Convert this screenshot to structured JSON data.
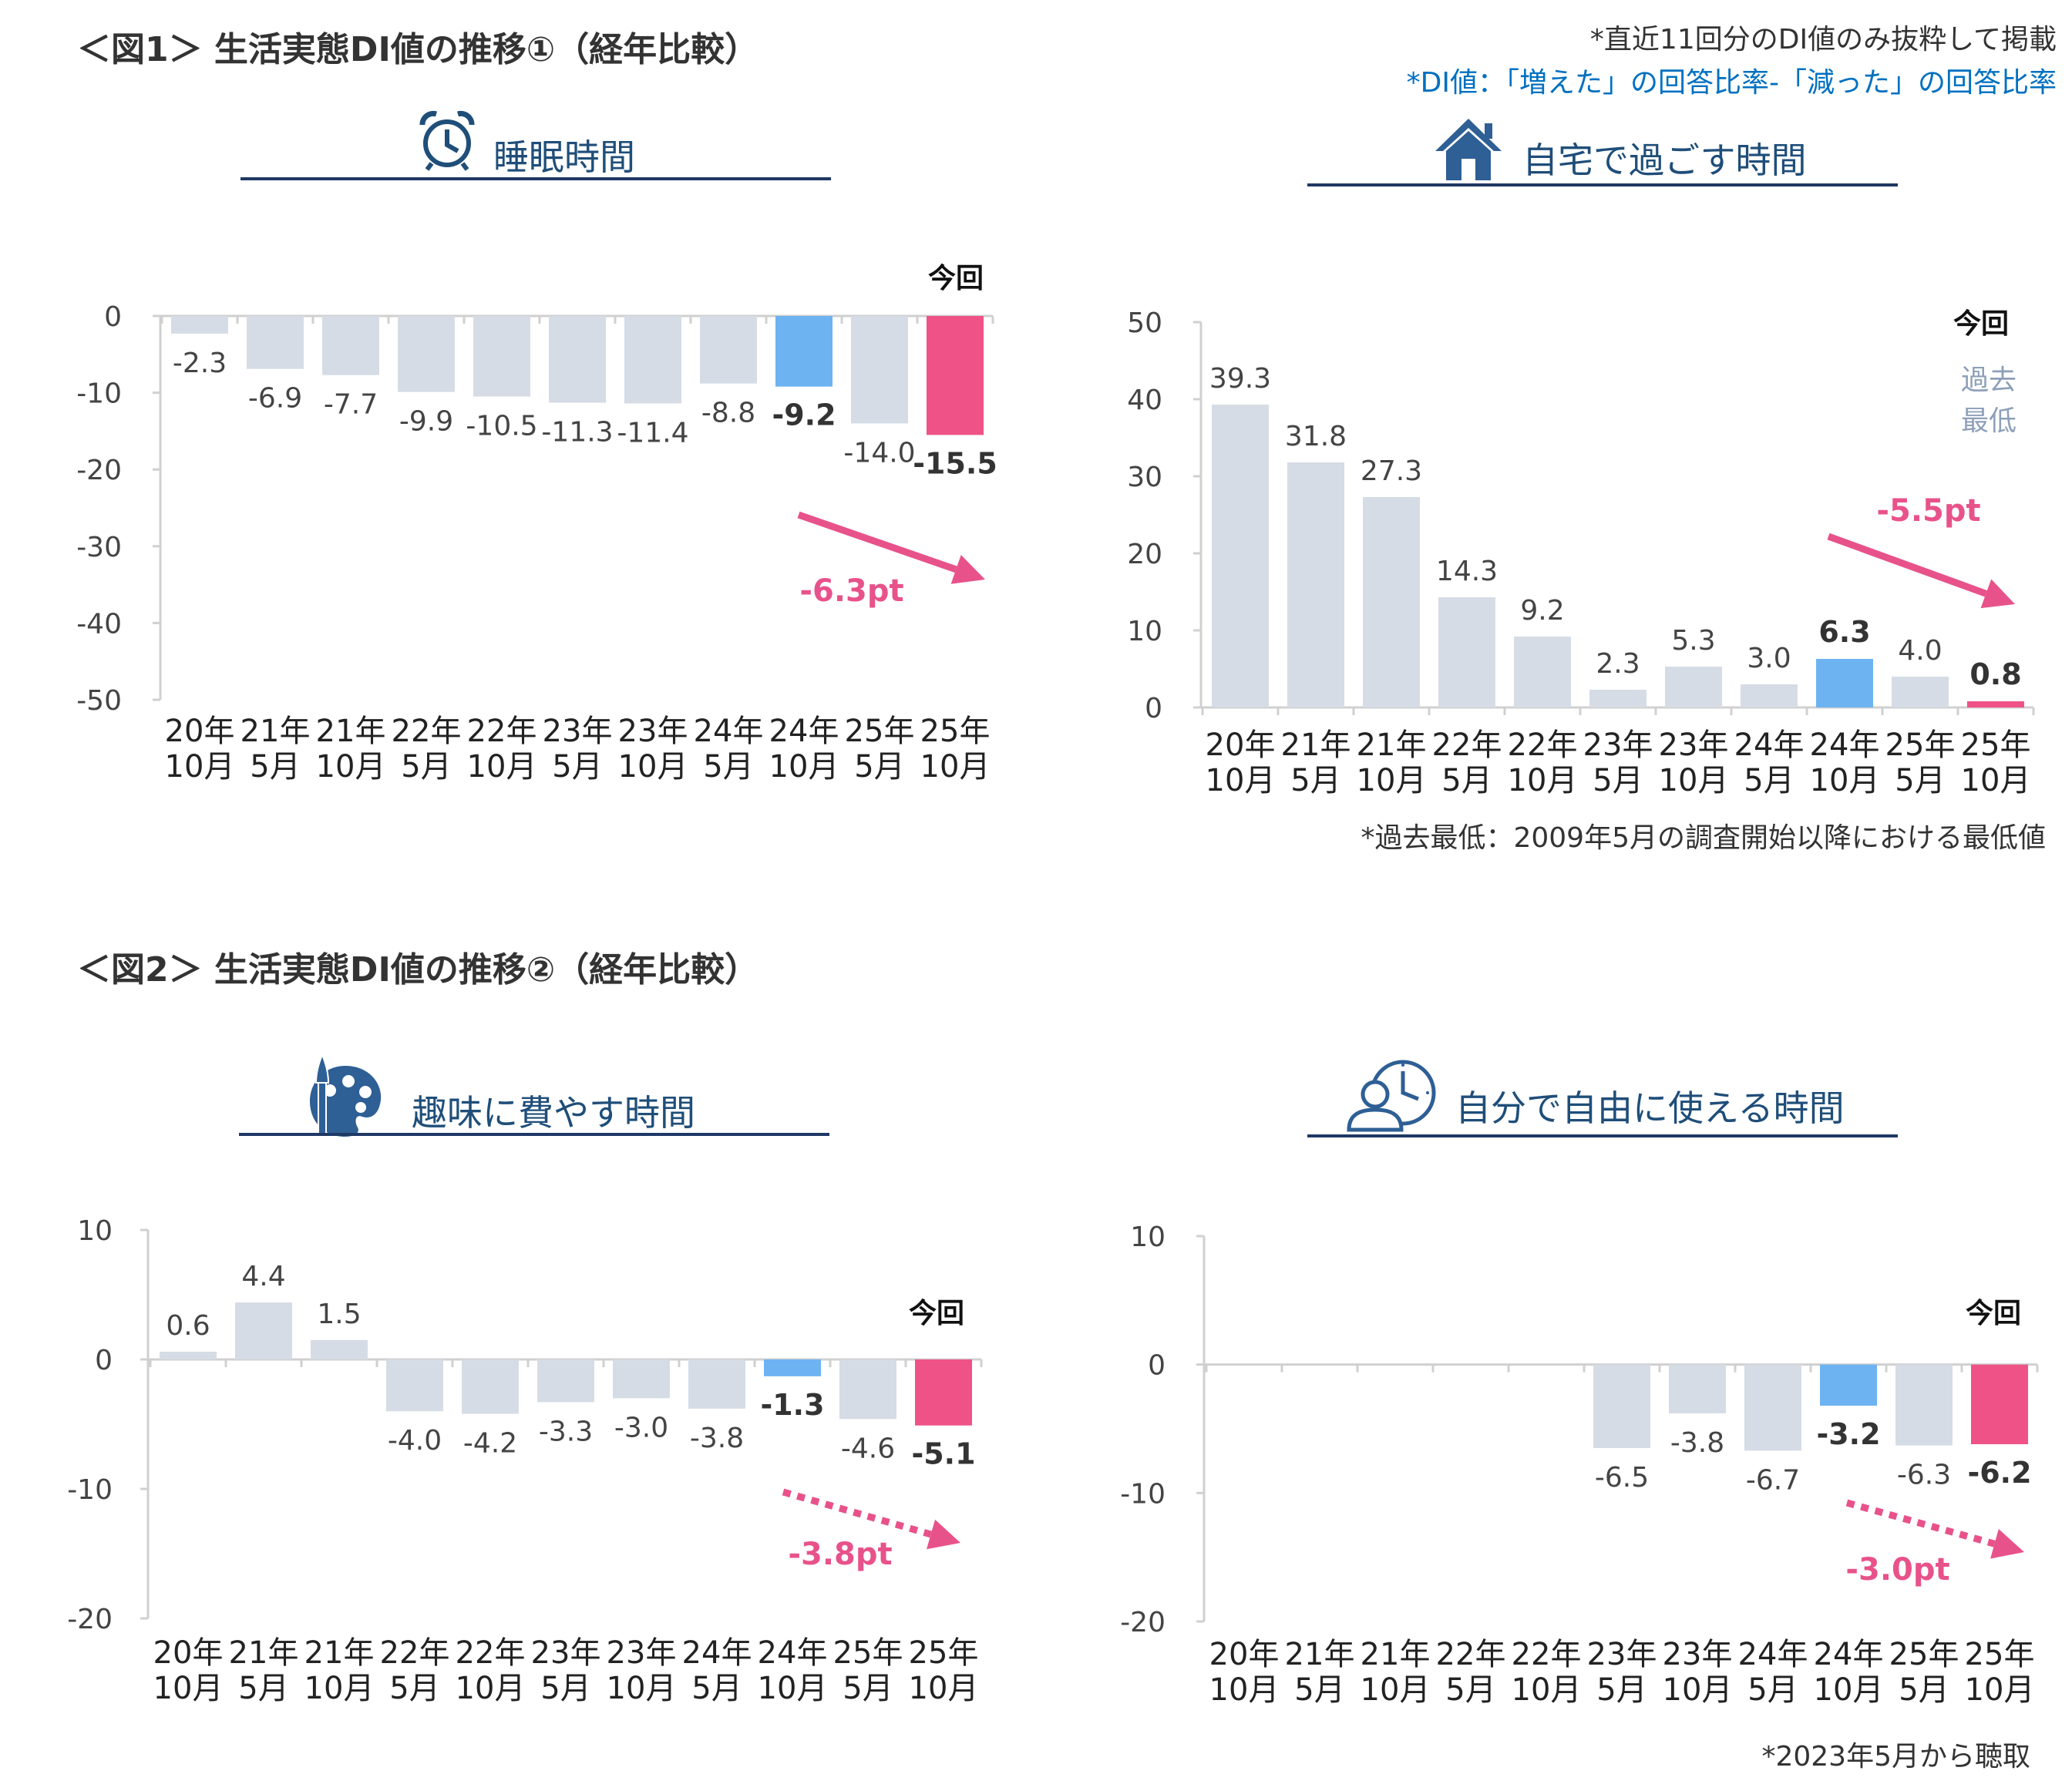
{
  "fig1_title": "＜図1＞ 生活実態DI値の推移①（経年比較）",
  "fig2_title": "＜図2＞ 生活実態DI値の推移②（経年比較）",
  "note_top": "*直近11回分のDI値のみ抜粋して掲載",
  "note_di": "*DI値：「増えた」の回答比率-「減った」の回答比率",
  "note_lowest": "*過去最低：2009年5月の調査開始以降における最低値",
  "note_2023": "*2023年5月から聴取",
  "colors": {
    "past": "#d6dce5",
    "prev": "#6db3f2",
    "current": "#ef5287",
    "accent": "#e8528a",
    "title": "#1f4e79"
  },
  "chart_data": [
    {
      "type": "bar",
      "title": "睡眠時間",
      "icon": "alarm-clock-icon",
      "categories": [
        "20年10月",
        "21年5月",
        "21年10月",
        "22年5月",
        "22年10月",
        "23年5月",
        "23年10月",
        "24年5月",
        "24年10月",
        "25年5月",
        "25年10月"
      ],
      "category_lines": [
        [
          "20年",
          "10月"
        ],
        [
          "21年",
          "5月"
        ],
        [
          "21年",
          "10月"
        ],
        [
          "22年",
          "5月"
        ],
        [
          "22年",
          "10月"
        ],
        [
          "23年",
          "5月"
        ],
        [
          "23年",
          "10月"
        ],
        [
          "24年",
          "5月"
        ],
        [
          "24年",
          "10月"
        ],
        [
          "25年",
          "5月"
        ],
        [
          "25年",
          "10月"
        ]
      ],
      "values": [
        -2.3,
        -6.9,
        -7.7,
        -9.9,
        -10.5,
        -11.3,
        -11.4,
        -8.8,
        -9.2,
        -14.0,
        -15.5
      ],
      "value_labels": [
        "-2.3",
        "-6.9",
        "-7.7",
        "-9.9",
        "-10.5",
        "-11.3",
        "-11.4",
        "-8.8",
        "-9.2",
        "-14.0",
        "-15.5"
      ],
      "ylim": [
        -50,
        0
      ],
      "yticks": [
        0,
        -10,
        -20,
        -30,
        -40,
        -50
      ],
      "ytick_labels": [
        "0",
        "-10",
        "-20",
        "-30",
        "-40",
        "-50"
      ],
      "current_label": "今回",
      "change_label": "-6.3pt",
      "arrow_style": "solid"
    },
    {
      "type": "bar",
      "title": "自宅で過ごす時間",
      "icon": "house-icon",
      "categories": [
        "20年10月",
        "21年5月",
        "21年10月",
        "22年5月",
        "22年10月",
        "23年5月",
        "23年10月",
        "24年5月",
        "24年10月",
        "25年5月",
        "25年10月"
      ],
      "category_lines": [
        [
          "20年",
          "10月"
        ],
        [
          "21年",
          "5月"
        ],
        [
          "21年",
          "10月"
        ],
        [
          "22年",
          "5月"
        ],
        [
          "22年",
          "10月"
        ],
        [
          "23年",
          "5月"
        ],
        [
          "23年",
          "10月"
        ],
        [
          "24年",
          "5月"
        ],
        [
          "24年",
          "10月"
        ],
        [
          "25年",
          "5月"
        ],
        [
          "25年",
          "10月"
        ]
      ],
      "values": [
        39.3,
        31.8,
        27.3,
        14.3,
        9.2,
        2.3,
        5.3,
        3.0,
        6.3,
        4.0,
        0.8
      ],
      "value_labels": [
        "39.3",
        "31.8",
        "27.3",
        "14.3",
        "9.2",
        "2.3",
        "5.3",
        "3.0",
        "6.3",
        "4.0",
        "0.8"
      ],
      "ylim": [
        0,
        50
      ],
      "yticks": [
        50,
        40,
        30,
        20,
        10,
        0
      ],
      "ytick_labels": [
        "50",
        "40",
        "30",
        "20",
        "10",
        "0"
      ],
      "current_label": "今回",
      "lowest_label": [
        "過去",
        "最低"
      ],
      "change_label": "-5.5pt",
      "arrow_style": "solid"
    },
    {
      "type": "bar",
      "title": "趣味に費やす時間",
      "icon": "palette-icon",
      "categories": [
        "20年10月",
        "21年5月",
        "21年10月",
        "22年5月",
        "22年10月",
        "23年5月",
        "23年10月",
        "24年5月",
        "24年10月",
        "25年5月",
        "25年10月"
      ],
      "category_lines": [
        [
          "20年",
          "10月"
        ],
        [
          "21年",
          "5月"
        ],
        [
          "21年",
          "10月"
        ],
        [
          "22年",
          "5月"
        ],
        [
          "22年",
          "10月"
        ],
        [
          "23年",
          "5月"
        ],
        [
          "23年",
          "10月"
        ],
        [
          "24年",
          "5月"
        ],
        [
          "24年",
          "10月"
        ],
        [
          "25年",
          "5月"
        ],
        [
          "25年",
          "10月"
        ]
      ],
      "values": [
        0.6,
        4.4,
        1.5,
        -4.0,
        -4.2,
        -3.3,
        -3.0,
        -3.8,
        -1.3,
        -4.6,
        -5.1
      ],
      "value_labels": [
        "0.6",
        "4.4",
        "1.5",
        "-4.0",
        "-4.2",
        "-3.3",
        "-3.0",
        "-3.8",
        "-1.3",
        "-4.6",
        "-5.1"
      ],
      "ylim": [
        -20,
        10
      ],
      "yticks": [
        10,
        0,
        -10,
        -20
      ],
      "ytick_labels": [
        "10",
        "0",
        "-10",
        "-20"
      ],
      "current_label": "今回",
      "change_label": "-3.8pt",
      "arrow_style": "dotted"
    },
    {
      "type": "bar",
      "title": "自分で自由に使える時間",
      "icon": "person-clock-icon",
      "categories": [
        "20年10月",
        "21年5月",
        "21年10月",
        "22年5月",
        "22年10月",
        "23年5月",
        "23年10月",
        "24年5月",
        "24年10月",
        "25年5月",
        "25年10月"
      ],
      "category_lines": [
        [
          "20年",
          "10月"
        ],
        [
          "21年",
          "5月"
        ],
        [
          "21年",
          "10月"
        ],
        [
          "22年",
          "5月"
        ],
        [
          "22年",
          "10月"
        ],
        [
          "23年",
          "5月"
        ],
        [
          "23年",
          "10月"
        ],
        [
          "24年",
          "5月"
        ],
        [
          "24年",
          "10月"
        ],
        [
          "25年",
          "5月"
        ],
        [
          "25年",
          "10月"
        ]
      ],
      "values": [
        null,
        null,
        null,
        null,
        null,
        -6.5,
        -3.8,
        -6.7,
        -3.2,
        -6.3,
        -6.2
      ],
      "value_labels": [
        "",
        "",
        "",
        "",
        "",
        "-6.5",
        "-3.8",
        "-6.7",
        "-3.2",
        "-6.3",
        "-6.2"
      ],
      "ylim": [
        -20,
        10
      ],
      "yticks": [
        10,
        0,
        -10,
        -20
      ],
      "ytick_labels": [
        "10",
        "0",
        "-10",
        "-20"
      ],
      "current_label": "今回",
      "change_label": "-3.0pt",
      "arrow_style": "dotted"
    }
  ]
}
